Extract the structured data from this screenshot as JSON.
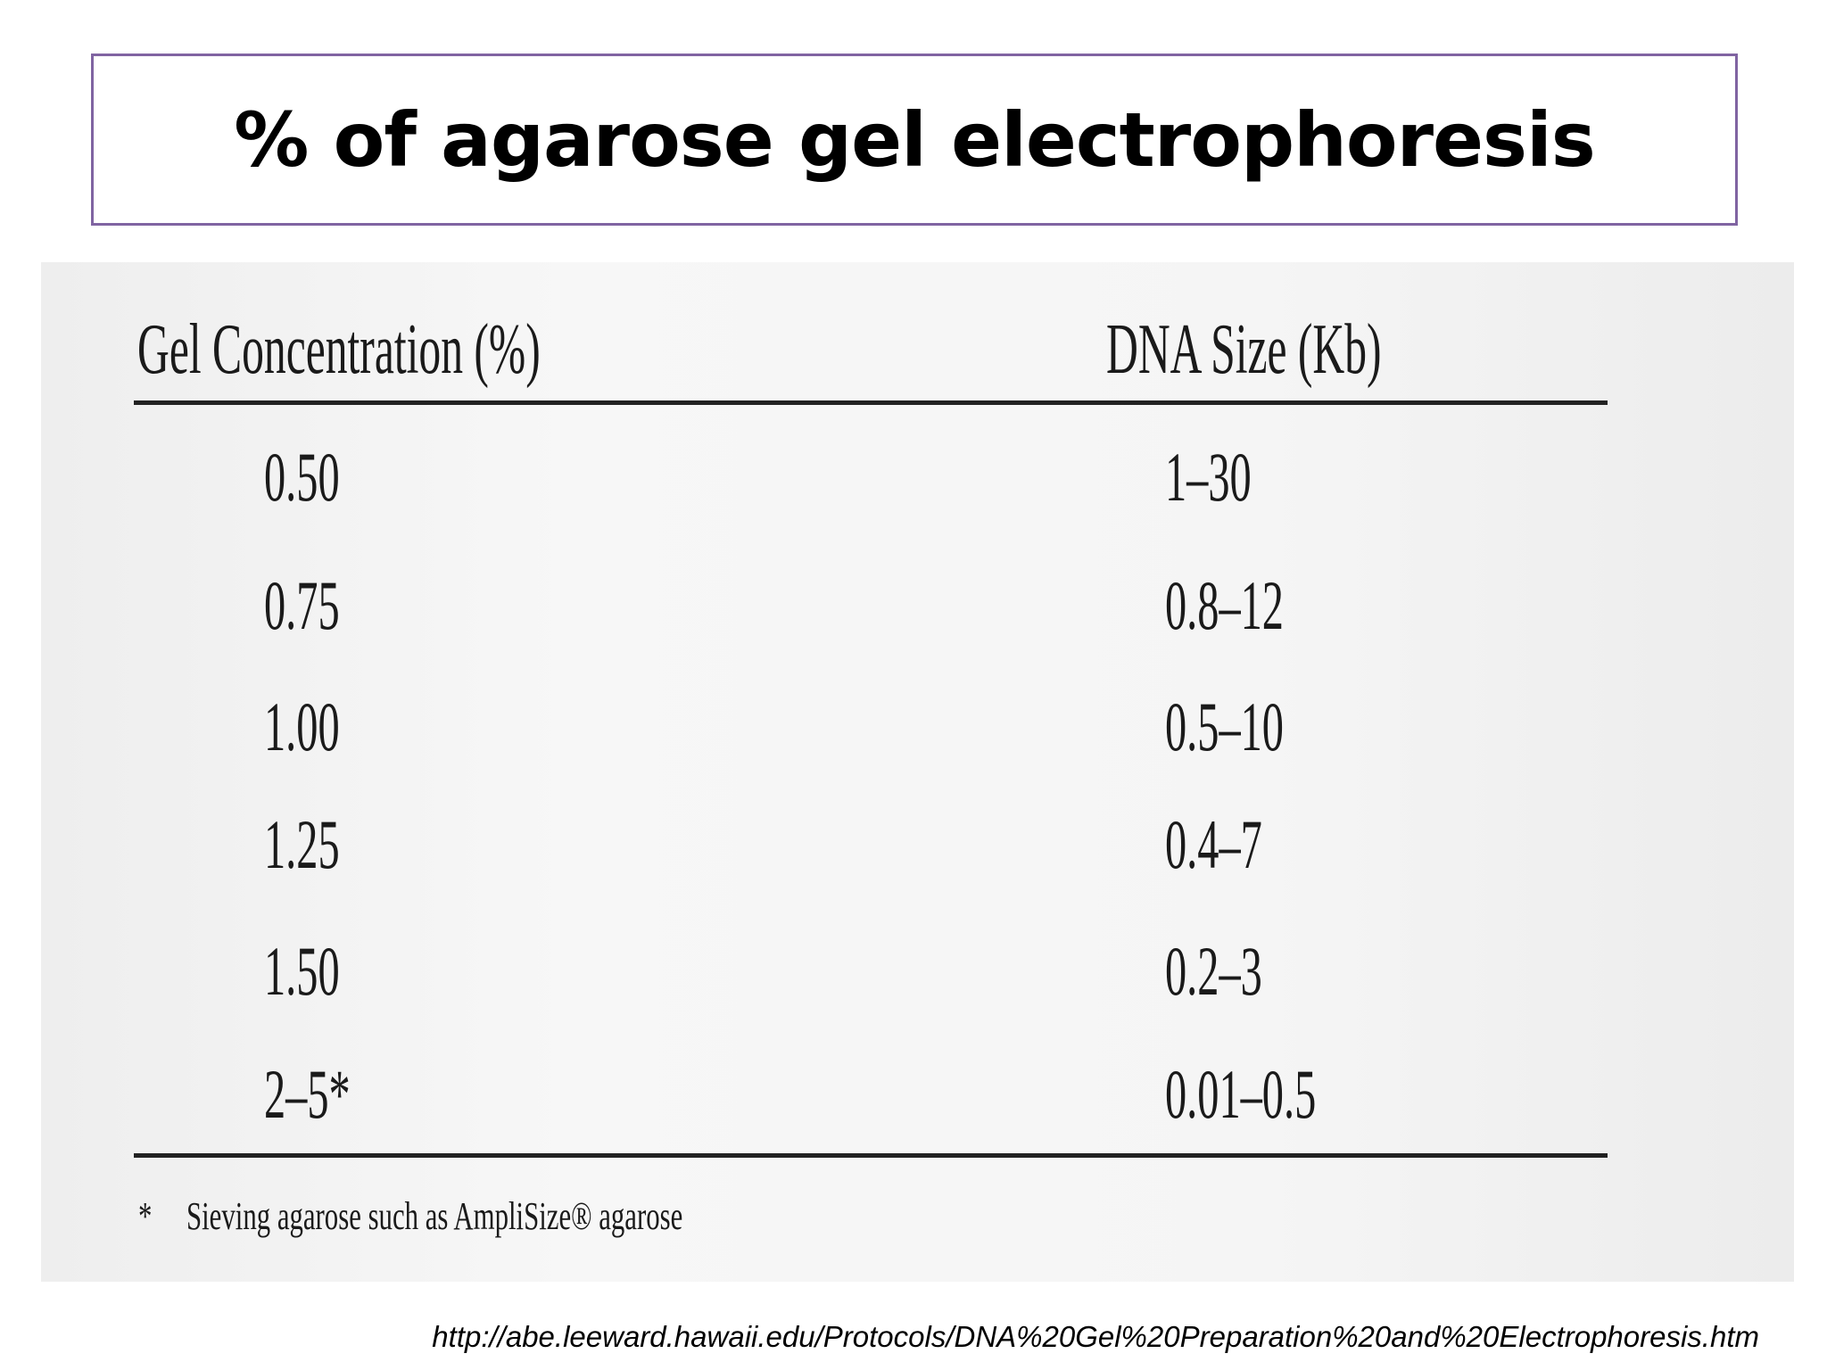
{
  "header": {
    "title": "% of agarose gel electrophoresis"
  },
  "table": {
    "columns": [
      "Gel Concentration (%)",
      "DNA Size (Kb)"
    ],
    "rows": [
      [
        "0.50",
        "1–30"
      ],
      [
        "0.75",
        "0.8–12"
      ],
      [
        "1.00",
        "0.5–10"
      ],
      [
        "1.25",
        "0.4–7"
      ],
      [
        "1.50",
        "0.2–3"
      ],
      [
        "2–5*",
        "0.01–0.5"
      ]
    ],
    "footnote": {
      "marker": "*",
      "text": "Sieving agarose such as AmpliSize® agarose"
    }
  },
  "source": "http://abe.leeward.hawaii.edu/Protocols/DNA%20Gel%20Preparation%20and%20Electrophoresis.htm"
}
